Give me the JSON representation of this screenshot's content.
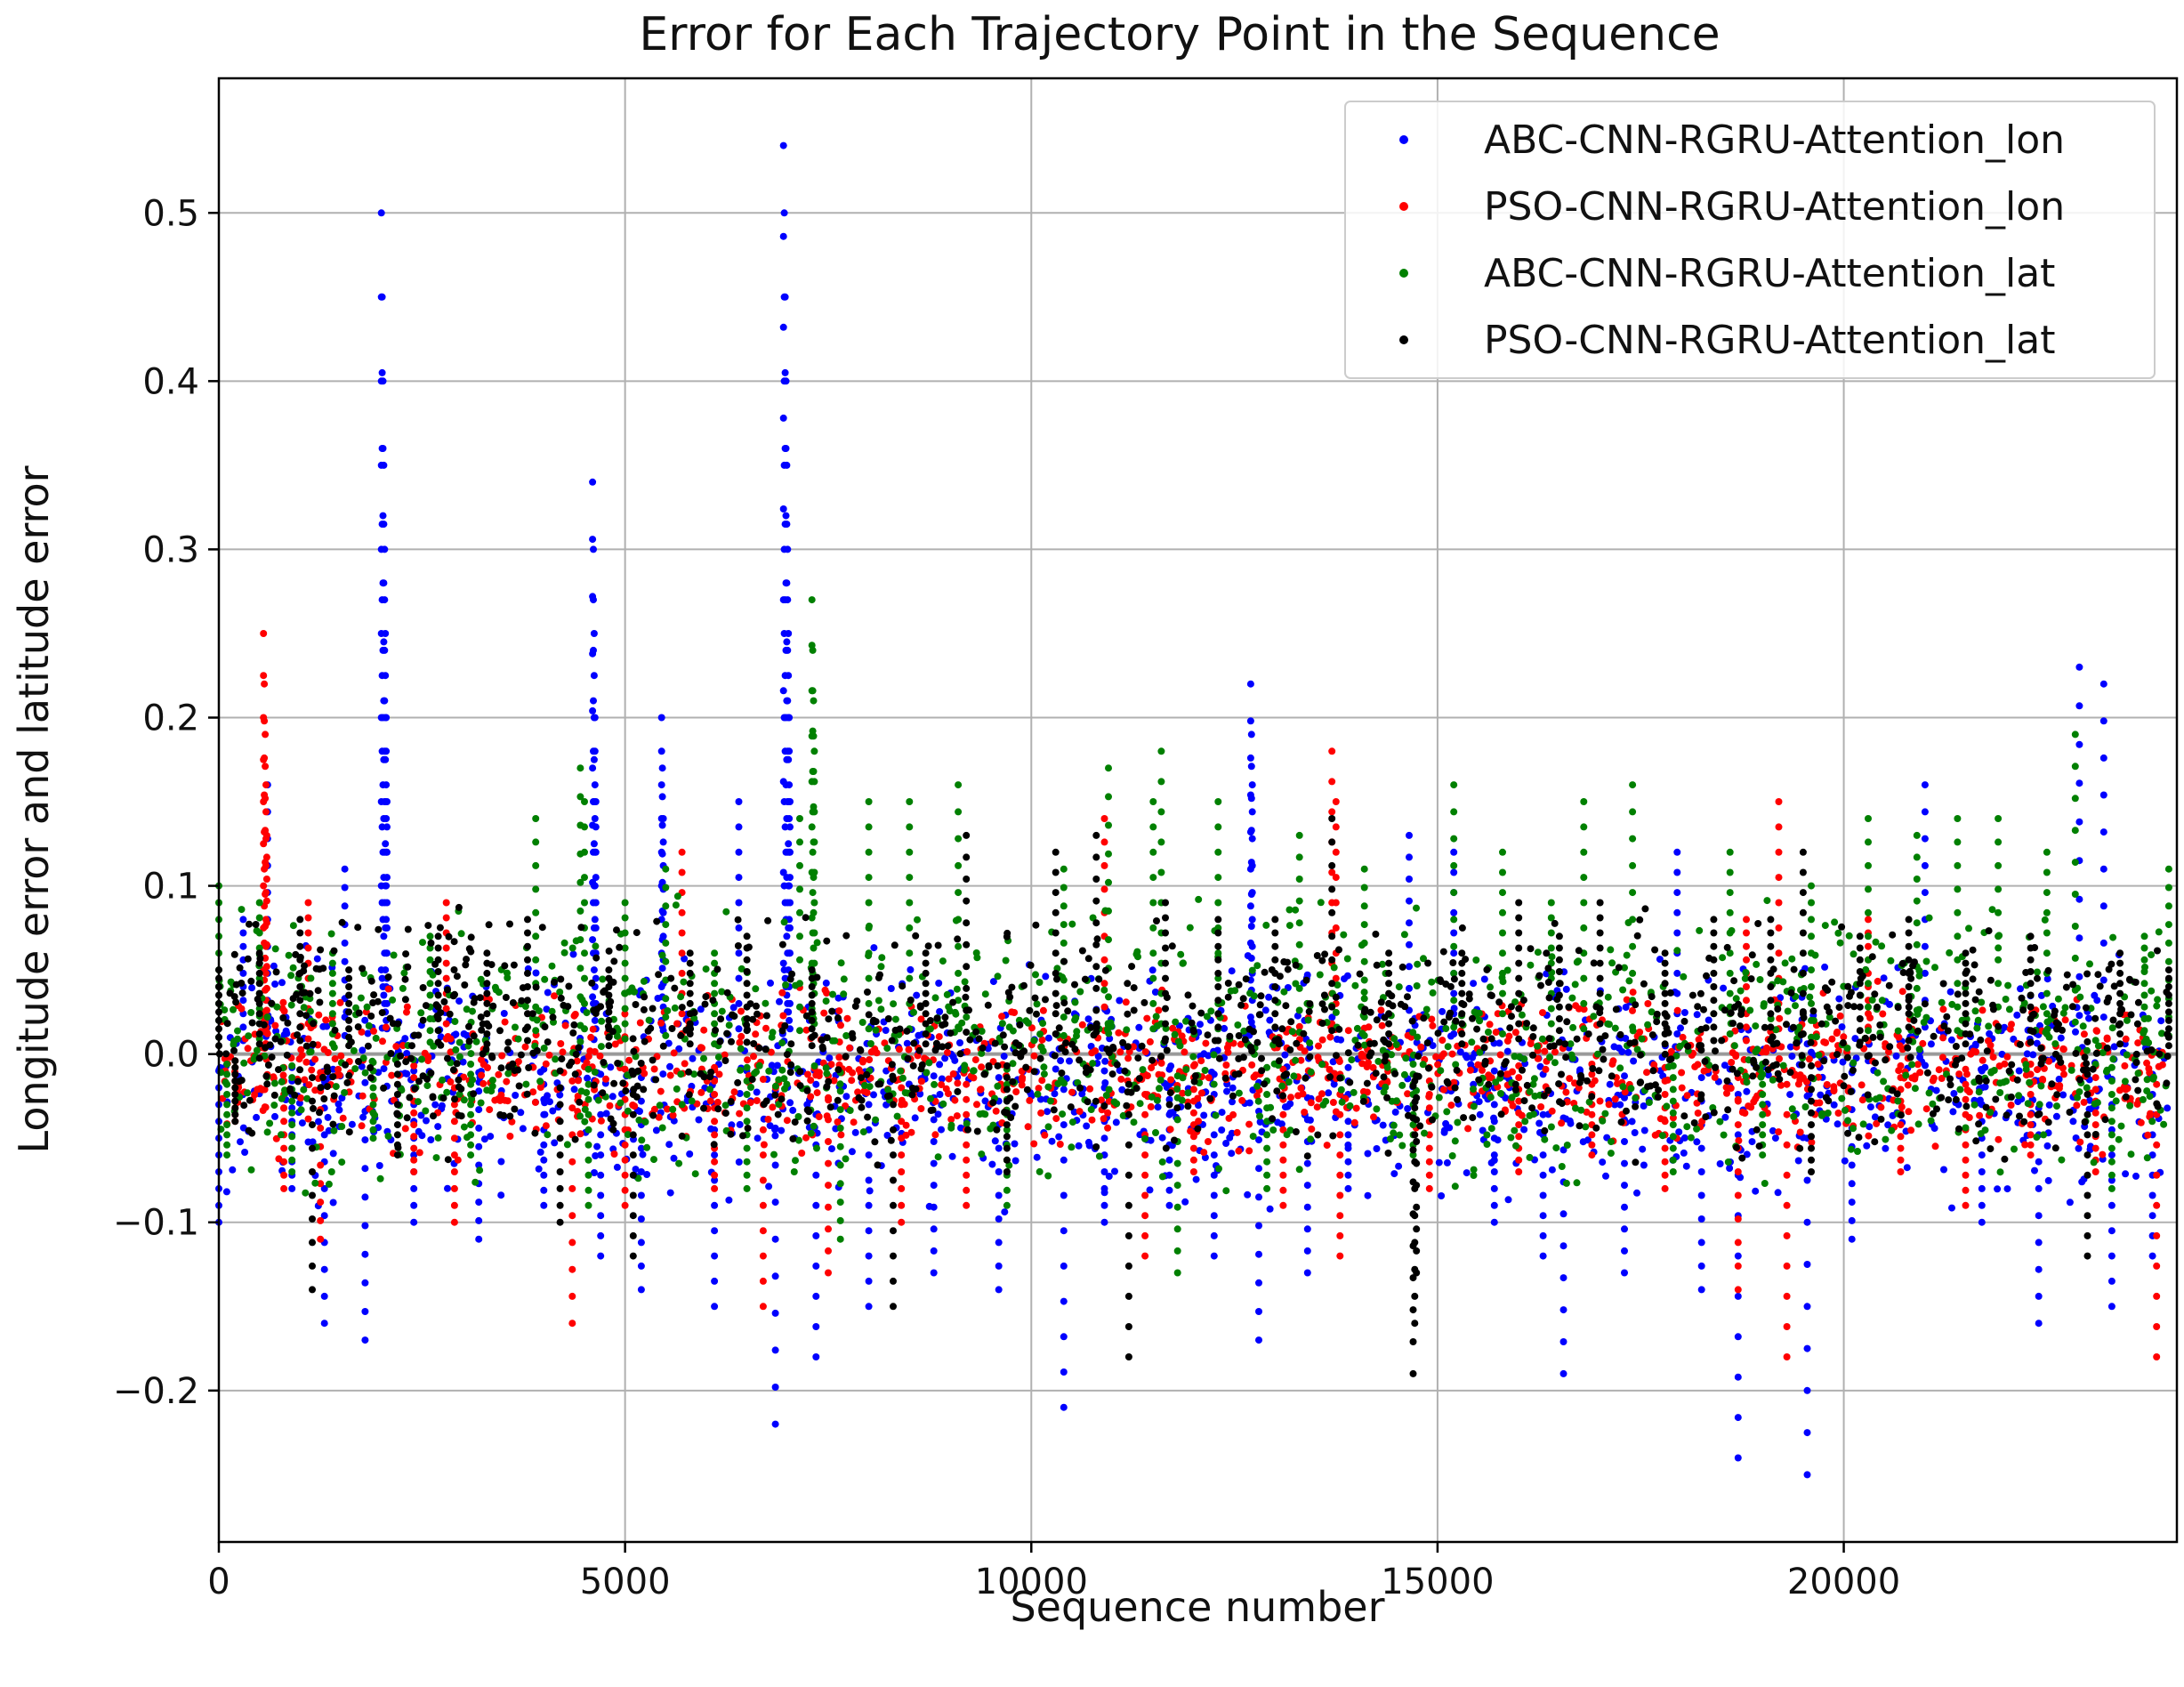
{
  "chart_data": {
    "type": "scatter",
    "title": "Error for Each Trajectory Point in the Sequence",
    "xlabel": "Sequence number",
    "ylabel": "Longitude error and latitude error",
    "xlim": [
      0,
      24100
    ],
    "ylim": [
      -0.29,
      0.58
    ],
    "x_ticks": [
      0,
      5000,
      10000,
      15000,
      20000
    ],
    "x_tick_labels": [
      "0",
      "5000",
      "10000",
      "15000",
      "20000"
    ],
    "y_ticks": [
      -0.2,
      -0.1,
      0.0,
      0.1,
      0.2,
      0.3,
      0.4,
      0.5
    ],
    "y_tick_labels": [
      "−0.2",
      "−0.1",
      "0.0",
      "0.1",
      "0.2",
      "0.3",
      "0.4",
      "0.5"
    ],
    "grid": true,
    "legend_position": "top-right",
    "zero_line_color": "#9a9a9a",
    "series": [
      {
        "name": "ABC-CNN-RGRU-Attention_lon",
        "color": "#0000ff",
        "points": [
          [
            0,
            -0.1
          ],
          [
            300,
            0.08
          ],
          [
            600,
            0.16
          ],
          [
            900,
            -0.08
          ],
          [
            1300,
            -0.16
          ],
          [
            1550,
            0.11
          ],
          [
            1800,
            -0.17
          ],
          [
            2000,
            0.5
          ],
          [
            2010,
            0.45
          ],
          [
            2020,
            0.4
          ],
          [
            2030,
            0.35
          ],
          [
            2040,
            0.3
          ],
          [
            2050,
            0.25
          ],
          [
            2060,
            0.2
          ],
          [
            2070,
            0.15
          ],
          [
            2400,
            -0.1
          ],
          [
            3200,
            -0.11
          ],
          [
            4000,
            -0.09
          ],
          [
            4600,
            0.34
          ],
          [
            4610,
            0.3
          ],
          [
            4620,
            0.25
          ],
          [
            4630,
            0.2
          ],
          [
            4640,
            0.15
          ],
          [
            4700,
            -0.12
          ],
          [
            5200,
            -0.14
          ],
          [
            5450,
            0.2
          ],
          [
            5460,
            0.17
          ],
          [
            5470,
            0.14
          ],
          [
            6100,
            -0.15
          ],
          [
            6400,
            0.15
          ],
          [
            6850,
            -0.22
          ],
          [
            6950,
            0.54
          ],
          [
            6960,
            0.5
          ],
          [
            6970,
            0.45
          ],
          [
            6980,
            0.4
          ],
          [
            6990,
            0.35
          ],
          [
            7000,
            0.3
          ],
          [
            7010,
            0.25
          ],
          [
            7020,
            0.2
          ],
          [
            7030,
            0.15
          ],
          [
            7350,
            -0.18
          ],
          [
            8000,
            -0.15
          ],
          [
            8800,
            -0.13
          ],
          [
            9600,
            -0.14
          ],
          [
            10400,
            -0.21
          ],
          [
            10900,
            -0.1
          ],
          [
            11700,
            -0.09
          ],
          [
            12250,
            -0.12
          ],
          [
            12700,
            0.22
          ],
          [
            12710,
            0.19
          ],
          [
            12720,
            0.16
          ],
          [
            12800,
            -0.17
          ],
          [
            13400,
            -0.13
          ],
          [
            13900,
            -0.08
          ],
          [
            14650,
            0.13
          ],
          [
            15200,
            0.12
          ],
          [
            15700,
            -0.1
          ],
          [
            16300,
            -0.12
          ],
          [
            16550,
            -0.19
          ],
          [
            17300,
            -0.13
          ],
          [
            17950,
            0.12
          ],
          [
            18250,
            -0.14
          ],
          [
            18700,
            -0.24
          ],
          [
            19550,
            -0.25
          ],
          [
            20100,
            -0.11
          ],
          [
            21000,
            0.16
          ],
          [
            21700,
            -0.1
          ],
          [
            22400,
            -0.16
          ],
          [
            22900,
            0.23
          ],
          [
            23200,
            0.22
          ],
          [
            23300,
            -0.15
          ],
          [
            23800,
            -0.12
          ]
        ]
      },
      {
        "name": "PSO-CNN-RGRU-Attention_lon",
        "color": "#ff0000",
        "points": [
          [
            200,
            -0.04
          ],
          [
            550,
            0.25
          ],
          [
            560,
            0.22
          ],
          [
            570,
            0.19
          ],
          [
            580,
            0.16
          ],
          [
            590,
            0.13
          ],
          [
            800,
            -0.08
          ],
          [
            1100,
            0.09
          ],
          [
            1250,
            -0.11
          ],
          [
            2400,
            -0.07
          ],
          [
            2800,
            0.09
          ],
          [
            2900,
            -0.1
          ],
          [
            4350,
            -0.16
          ],
          [
            5000,
            -0.09
          ],
          [
            5700,
            0.12
          ],
          [
            6100,
            -0.08
          ],
          [
            6700,
            -0.15
          ],
          [
            7500,
            -0.13
          ],
          [
            8400,
            -0.1
          ],
          [
            9200,
            -0.09
          ],
          [
            10900,
            0.14
          ],
          [
            11400,
            -0.12
          ],
          [
            12000,
            -0.07
          ],
          [
            13100,
            -0.09
          ],
          [
            13700,
            0.18
          ],
          [
            13750,
            0.15
          ],
          [
            13800,
            -0.12
          ],
          [
            14900,
            -0.08
          ],
          [
            16000,
            -0.07
          ],
          [
            16900,
            -0.06
          ],
          [
            17800,
            -0.08
          ],
          [
            18700,
            -0.14
          ],
          [
            18800,
            0.08
          ],
          [
            19200,
            0.15
          ],
          [
            19300,
            -0.18
          ],
          [
            20300,
            0.08
          ],
          [
            20700,
            -0.07
          ],
          [
            21500,
            -0.09
          ],
          [
            22300,
            -0.06
          ],
          [
            23100,
            -0.07
          ],
          [
            23850,
            -0.18
          ]
        ]
      },
      {
        "name": "ABC-CNN-RGRU-Attention_lat",
        "color": "#008000",
        "points": [
          [
            0,
            0.1
          ],
          [
            100,
            -0.06
          ],
          [
            500,
            0.09
          ],
          [
            900,
            -0.07
          ],
          [
            1400,
            0.06
          ],
          [
            1900,
            -0.05
          ],
          [
            2600,
            0.07
          ],
          [
            3100,
            -0.06
          ],
          [
            3900,
            0.14
          ],
          [
            4450,
            0.17
          ],
          [
            4500,
            0.15
          ],
          [
            4550,
            -0.09
          ],
          [
            5000,
            0.09
          ],
          [
            5500,
            0.11
          ],
          [
            6100,
            0.06
          ],
          [
            6500,
            -0.08
          ],
          [
            7150,
            0.14
          ],
          [
            7300,
            0.27
          ],
          [
            7310,
            0.24
          ],
          [
            7320,
            0.21
          ],
          [
            7330,
            0.18
          ],
          [
            7650,
            -0.11
          ],
          [
            8000,
            0.15
          ],
          [
            8500,
            0.15
          ],
          [
            9100,
            0.16
          ],
          [
            9700,
            -0.09
          ],
          [
            10400,
            0.11
          ],
          [
            10950,
            0.17
          ],
          [
            11500,
            0.15
          ],
          [
            11600,
            0.18
          ],
          [
            11800,
            -0.13
          ],
          [
            12300,
            0.15
          ],
          [
            12900,
            -0.08
          ],
          [
            13300,
            0.13
          ],
          [
            14100,
            0.11
          ],
          [
            14700,
            -0.06
          ],
          [
            15200,
            0.16
          ],
          [
            15800,
            0.12
          ],
          [
            16400,
            0.09
          ],
          [
            16800,
            0.15
          ],
          [
            17400,
            0.16
          ],
          [
            17900,
            -0.07
          ],
          [
            18600,
            0.12
          ],
          [
            19000,
            -0.06
          ],
          [
            19600,
            0.1
          ],
          [
            20300,
            0.14
          ],
          [
            20900,
            0.13
          ],
          [
            21400,
            0.14
          ],
          [
            21900,
            0.14
          ],
          [
            22500,
            0.12
          ],
          [
            22850,
            0.19
          ],
          [
            23300,
            -0.08
          ],
          [
            23700,
            0.07
          ],
          [
            24000,
            0.11
          ]
        ]
      },
      {
        "name": "PSO-CNN-RGRU-Attention_lat",
        "color": "#000000",
        "points": [
          [
            0,
            0.05
          ],
          [
            200,
            -0.04
          ],
          [
            500,
            0.06
          ],
          [
            1000,
            0.08
          ],
          [
            1150,
            -0.14
          ],
          [
            1600,
            0.05
          ],
          [
            2200,
            -0.06
          ],
          [
            2700,
            0.07
          ],
          [
            3300,
            0.06
          ],
          [
            3800,
            0.08
          ],
          [
            4200,
            -0.1
          ],
          [
            4800,
            0.05
          ],
          [
            5100,
            -0.12
          ],
          [
            5800,
            0.06
          ],
          [
            6500,
            0.07
          ],
          [
            7300,
            0.05
          ],
          [
            8300,
            -0.15
          ],
          [
            8700,
            0.06
          ],
          [
            9200,
            0.13
          ],
          [
            9700,
            -0.07
          ],
          [
            10300,
            0.12
          ],
          [
            10800,
            0.13
          ],
          [
            11200,
            -0.18
          ],
          [
            11650,
            0.09
          ],
          [
            12300,
            0.08
          ],
          [
            13000,
            0.08
          ],
          [
            13700,
            0.14
          ],
          [
            14400,
            0.06
          ],
          [
            14700,
            -0.19
          ],
          [
            14720,
            -0.16
          ],
          [
            14740,
            -0.13
          ],
          [
            15300,
            0.06
          ],
          [
            16000,
            0.09
          ],
          [
            16500,
            0.07
          ],
          [
            17000,
            0.09
          ],
          [
            17800,
            0.06
          ],
          [
            18400,
            0.08
          ],
          [
            19100,
            0.08
          ],
          [
            19500,
            0.12
          ],
          [
            19600,
            -0.07
          ],
          [
            20200,
            0.07
          ],
          [
            20800,
            0.08
          ],
          [
            21500,
            0.06
          ],
          [
            22300,
            0.07
          ],
          [
            23000,
            -0.12
          ],
          [
            23400,
            0.06
          ],
          [
            24000,
            0.05
          ]
        ]
      }
    ]
  }
}
